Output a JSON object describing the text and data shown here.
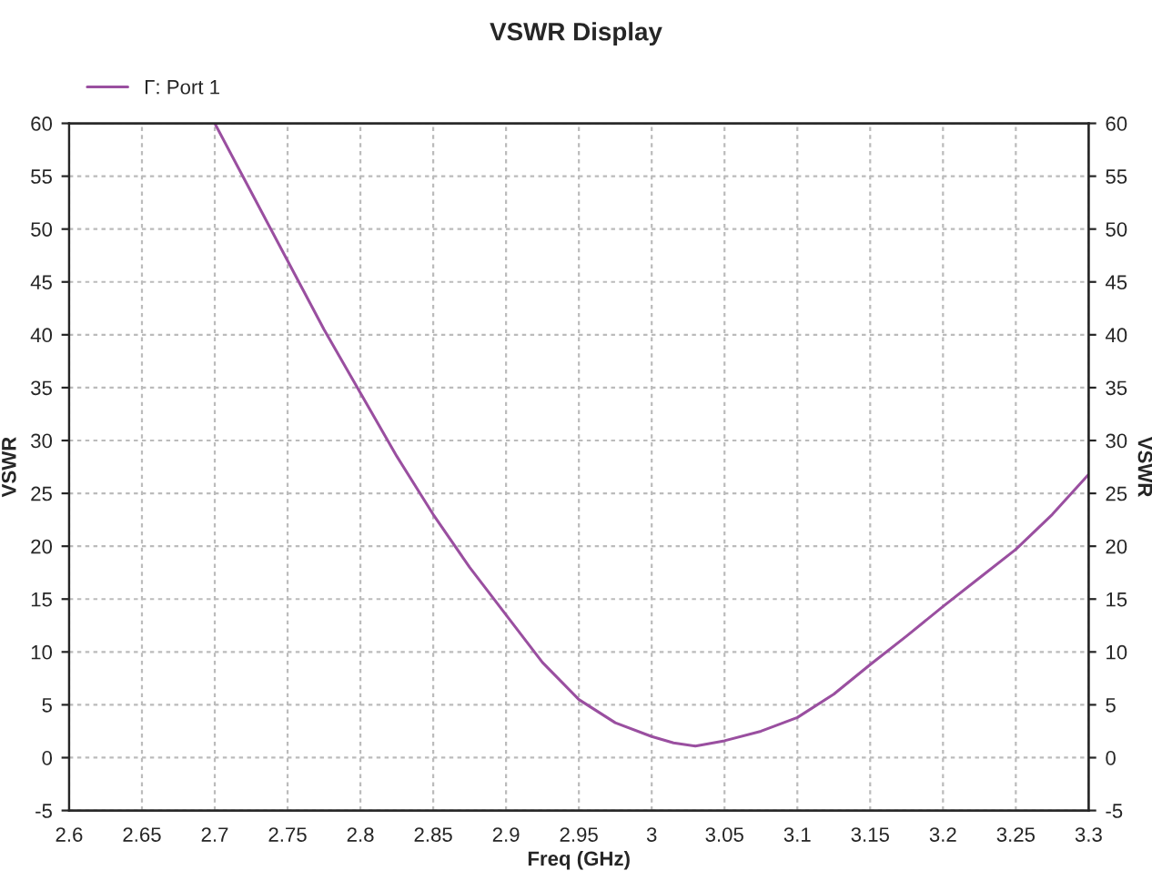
{
  "chart_data": {
    "type": "line",
    "title": "VSWR Display",
    "xlabel": "Freq (GHz)",
    "ylabel": "VSWR",
    "y2label": "VSWR",
    "x": [
      2.7,
      2.725,
      2.75,
      2.775,
      2.8,
      2.825,
      2.85,
      2.875,
      2.9,
      2.925,
      2.95,
      2.975,
      3.0,
      3.015,
      3.03,
      3.05,
      3.075,
      3.1,
      3.125,
      3.15,
      3.175,
      3.2,
      3.225,
      3.25,
      3.275,
      3.3
    ],
    "series": [
      {
        "name": "Γ: Port 1",
        "color": "#9a4fa0",
        "values": [
          60,
          53.5,
          47,
          40.5,
          34.5,
          28.5,
          23,
          18,
          13.5,
          9,
          5.5,
          3.3,
          2,
          1.4,
          1.1,
          1.6,
          2.5,
          3.8,
          6,
          8.8,
          11.5,
          14.3,
          17,
          19.7,
          23,
          26.8
        ]
      }
    ],
    "xlim": [
      2.6,
      3.3
    ],
    "xticks": [
      2.6,
      2.65,
      2.7,
      2.75,
      2.8,
      2.85,
      2.9,
      2.95,
      3,
      3.05,
      3.1,
      3.15,
      3.2,
      3.25,
      3.3
    ],
    "ylim": [
      -5,
      60
    ],
    "yticks": [
      -5,
      0,
      5,
      10,
      15,
      20,
      25,
      30,
      35,
      40,
      45,
      50,
      55,
      60
    ],
    "y2lim": [
      -5,
      60
    ],
    "y2ticks": [
      -5,
      0,
      5,
      10,
      15,
      20,
      25,
      30,
      35,
      40,
      45,
      50,
      55,
      60
    ],
    "grid": true,
    "legend": "top left",
    "line_style": "solid",
    "marker": "none"
  }
}
